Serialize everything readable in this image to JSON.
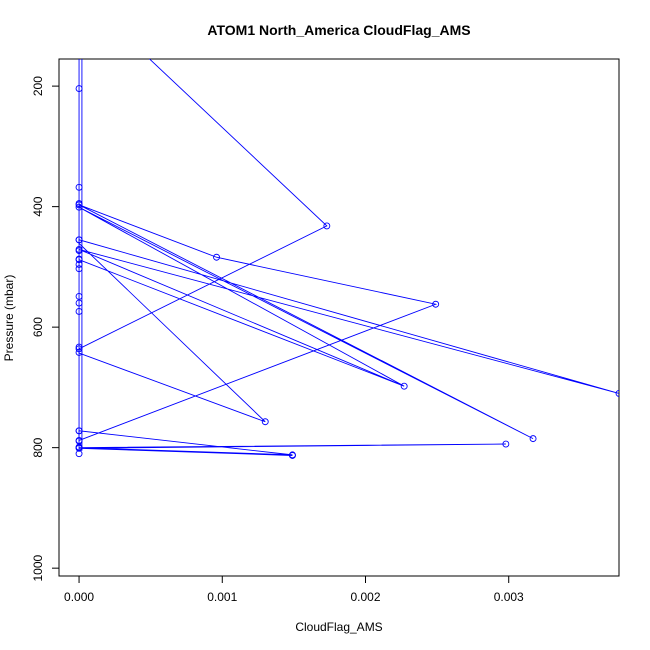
{
  "chart_data": {
    "type": "line",
    "title": "ATOM1 North_America CloudFlag_AMS",
    "xlabel": "CloudFlag_AMS",
    "ylabel": "Pressure (mbar)",
    "xlim": [
      -0.00014,
      0.00377
    ],
    "ylim": [
      1013,
      155
    ],
    "y_reversed": true,
    "x_ticks": [
      0,
      0.001,
      0.002,
      0.003
    ],
    "x_tick_labels": [
      "0.000",
      "0.001",
      "0.002",
      "0.003"
    ],
    "y_ticks": [
      200,
      400,
      600,
      800,
      1000
    ],
    "y_tick_labels": [
      "200",
      "400",
      "600",
      "800",
      "1000"
    ],
    "grid": false,
    "series": [
      {
        "color": "#0000ff",
        "draw": "both",
        "points": [
          {
            "x": 0.00047,
            "y": 150,
            "marker": false
          },
          {
            "x": 0.00173,
            "y": 432,
            "marker": true
          },
          {
            "x": 0,
            "y": 636,
            "marker": true
          },
          {
            "x": 0,
            "y": 643,
            "marker": false
          },
          {
            "x": 0.0013,
            "y": 757,
            "marker": true
          },
          {
            "x": 0,
            "y": 461,
            "marker": false
          },
          {
            "x": 0,
            "y": 455,
            "marker": true
          },
          {
            "x": 0.00377,
            "y": 710,
            "marker": true
          },
          {
            "x": 0,
            "y": 471,
            "marker": true
          },
          {
            "x": 0.00227,
            "y": 698,
            "marker": true
          },
          {
            "x": 0,
            "y": 488,
            "marker": true
          },
          {
            "x": 0.00227,
            "y": 698,
            "marker": false
          },
          {
            "x": 0,
            "y": 401,
            "marker": true
          },
          {
            "x": 0.00317,
            "y": 785,
            "marker": true
          },
          {
            "x": 0,
            "y": 397,
            "marker": true
          },
          {
            "x": 0.00096,
            "y": 484,
            "marker": true
          },
          {
            "x": 0.00249,
            "y": 562,
            "marker": true
          },
          {
            "x": 0,
            "y": 788,
            "marker": true
          },
          {
            "x": 0,
            "y": 772,
            "marker": true
          },
          {
            "x": 0.00149,
            "y": 812,
            "marker": true
          },
          {
            "x": 0,
            "y": 800,
            "marker": true
          },
          {
            "x": 0.00298,
            "y": 794,
            "marker": true
          },
          {
            "x": 0,
            "y": 801,
            "marker": true
          },
          {
            "x": 0.00149,
            "y": 813,
            "marker": true
          }
        ]
      },
      {
        "color": "#0000ff",
        "draw": "points",
        "points": [
          {
            "x": 0,
            "y": 204
          },
          {
            "x": 0,
            "y": 368
          },
          {
            "x": 0,
            "y": 395
          },
          {
            "x": 0,
            "y": 455
          },
          {
            "x": 0,
            "y": 473
          },
          {
            "x": 0,
            "y": 487
          },
          {
            "x": 0,
            "y": 496
          },
          {
            "x": 0,
            "y": 503
          },
          {
            "x": 0,
            "y": 549
          },
          {
            "x": 0,
            "y": 560
          },
          {
            "x": 0,
            "y": 574
          },
          {
            "x": 0,
            "y": 633
          },
          {
            "x": 0,
            "y": 642
          },
          {
            "x": 0,
            "y": 772
          },
          {
            "x": 0,
            "y": 789
          },
          {
            "x": 0,
            "y": 799
          },
          {
            "x": 0,
            "y": 810
          }
        ]
      },
      {
        "color": "#0000ff",
        "draw": "line",
        "points": [
          {
            "x": 0,
            "y": 150
          },
          {
            "x": 0,
            "y": 805
          }
        ]
      },
      {
        "color": "#0000ff",
        "draw": "line",
        "points": [
          {
            "x": 2e-05,
            "y": 150
          },
          {
            "x": 2e-05,
            "y": 805
          }
        ]
      }
    ]
  }
}
